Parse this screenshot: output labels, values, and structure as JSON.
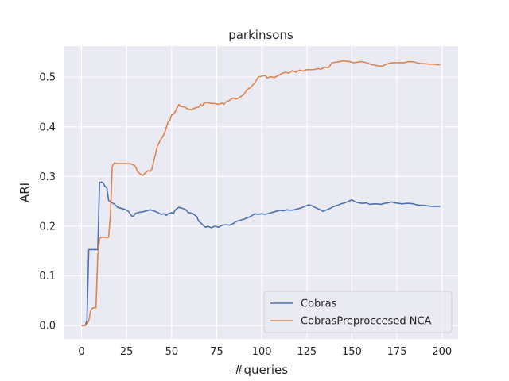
{
  "chart_data": {
    "type": "line",
    "title": "parkinsons",
    "xlabel": "#queries",
    "ylabel": "ARI",
    "xlim": [
      -9.95,
      208.95
    ],
    "ylim": [
      -0.0268,
      0.5625
    ],
    "xticks": [
      0,
      25,
      50,
      75,
      100,
      125,
      150,
      175,
      200
    ],
    "yticks": [
      0.0,
      0.1,
      0.2,
      0.3,
      0.4,
      0.5
    ],
    "ytick_labels": [
      "0.0",
      "0.1",
      "0.2",
      "0.3",
      "0.4",
      "0.5"
    ],
    "grid": true,
    "legend_position": "lower-right",
    "series": [
      {
        "name": "Cobras",
        "color": "#4c72b0",
        "points": [
          [
            0,
            0.0
          ],
          [
            2,
            0.0
          ],
          [
            3,
            0.01
          ],
          [
            4,
            0.153
          ],
          [
            5,
            0.153
          ],
          [
            6,
            0.153
          ],
          [
            8,
            0.153
          ],
          [
            9,
            0.153
          ],
          [
            10,
            0.288
          ],
          [
            11,
            0.289
          ],
          [
            12,
            0.287
          ],
          [
            13,
            0.28
          ],
          [
            14,
            0.278
          ],
          [
            15,
            0.252
          ],
          [
            16,
            0.249
          ],
          [
            17,
            0.247
          ],
          [
            18,
            0.245
          ],
          [
            19,
            0.242
          ],
          [
            20,
            0.238
          ],
          [
            22,
            0.236
          ],
          [
            24,
            0.234
          ],
          [
            26,
            0.23
          ],
          [
            27,
            0.225
          ],
          [
            28,
            0.22
          ],
          [
            29,
            0.221
          ],
          [
            30,
            0.226
          ],
          [
            32,
            0.228
          ],
          [
            34,
            0.229
          ],
          [
            36,
            0.231
          ],
          [
            38,
            0.233
          ],
          [
            40,
            0.231
          ],
          [
            42,
            0.228
          ],
          [
            44,
            0.224
          ],
          [
            46,
            0.225
          ],
          [
            47,
            0.222
          ],
          [
            48,
            0.225
          ],
          [
            50,
            0.227
          ],
          [
            51,
            0.225
          ],
          [
            52,
            0.233
          ],
          [
            54,
            0.238
          ],
          [
            56,
            0.236
          ],
          [
            58,
            0.233
          ],
          [
            59,
            0.228
          ],
          [
            60,
            0.227
          ],
          [
            62,
            0.225
          ],
          [
            64,
            0.219
          ],
          [
            65,
            0.21
          ],
          [
            67,
            0.204
          ],
          [
            68,
            0.2
          ],
          [
            69,
            0.198
          ],
          [
            70,
            0.2
          ],
          [
            72,
            0.197
          ],
          [
            74,
            0.2
          ],
          [
            76,
            0.198
          ],
          [
            78,
            0.202
          ],
          [
            80,
            0.203
          ],
          [
            82,
            0.202
          ],
          [
            84,
            0.205
          ],
          [
            86,
            0.21
          ],
          [
            88,
            0.212
          ],
          [
            90,
            0.214
          ],
          [
            92,
            0.217
          ],
          [
            94,
            0.22
          ],
          [
            96,
            0.225
          ],
          [
            98,
            0.224
          ],
          [
            100,
            0.225
          ],
          [
            102,
            0.224
          ],
          [
            104,
            0.226
          ],
          [
            106,
            0.228
          ],
          [
            108,
            0.23
          ],
          [
            110,
            0.232
          ],
          [
            112,
            0.231
          ],
          [
            114,
            0.233
          ],
          [
            116,
            0.232
          ],
          [
            118,
            0.233
          ],
          [
            120,
            0.235
          ],
          [
            122,
            0.237
          ],
          [
            124,
            0.24
          ],
          [
            126,
            0.243
          ],
          [
            128,
            0.241
          ],
          [
            130,
            0.237
          ],
          [
            132,
            0.234
          ],
          [
            134,
            0.23
          ],
          [
            136,
            0.233
          ],
          [
            138,
            0.236
          ],
          [
            140,
            0.24
          ],
          [
            142,
            0.242
          ],
          [
            144,
            0.245
          ],
          [
            146,
            0.247
          ],
          [
            148,
            0.25
          ],
          [
            150,
            0.253
          ],
          [
            152,
            0.249
          ],
          [
            154,
            0.247
          ],
          [
            156,
            0.246
          ],
          [
            158,
            0.247
          ],
          [
            160,
            0.244
          ],
          [
            162,
            0.245
          ],
          [
            164,
            0.245
          ],
          [
            166,
            0.244
          ],
          [
            168,
            0.246
          ],
          [
            170,
            0.247
          ],
          [
            172,
            0.249
          ],
          [
            174,
            0.247
          ],
          [
            176,
            0.246
          ],
          [
            178,
            0.245
          ],
          [
            180,
            0.246
          ],
          [
            182,
            0.246
          ],
          [
            184,
            0.245
          ],
          [
            186,
            0.243
          ],
          [
            188,
            0.242
          ],
          [
            190,
            0.242
          ],
          [
            192,
            0.241
          ],
          [
            194,
            0.24
          ],
          [
            196,
            0.24
          ],
          [
            198,
            0.24
          ],
          [
            199,
            0.24
          ]
        ]
      },
      {
        "name": "CobrasPreproccesed NCA",
        "color": "#dd8452",
        "points": [
          [
            0,
            0.0
          ],
          [
            2,
            0.0
          ],
          [
            3,
            0.003
          ],
          [
            4,
            0.01
          ],
          [
            5,
            0.03
          ],
          [
            6,
            0.035
          ],
          [
            7,
            0.036
          ],
          [
            8,
            0.036
          ],
          [
            9,
            0.14
          ],
          [
            10,
            0.175
          ],
          [
            11,
            0.178
          ],
          [
            12,
            0.178
          ],
          [
            14,
            0.177
          ],
          [
            15,
            0.178
          ],
          [
            16,
            0.22
          ],
          [
            17,
            0.32
          ],
          [
            18,
            0.327
          ],
          [
            20,
            0.326
          ],
          [
            22,
            0.326
          ],
          [
            24,
            0.326
          ],
          [
            26,
            0.326
          ],
          [
            28,
            0.325
          ],
          [
            30,
            0.32
          ],
          [
            31,
            0.31
          ],
          [
            33,
            0.304
          ],
          [
            34,
            0.302
          ],
          [
            35,
            0.306
          ],
          [
            37,
            0.312
          ],
          [
            38,
            0.31
          ],
          [
            39,
            0.315
          ],
          [
            40,
            0.33
          ],
          [
            41,
            0.345
          ],
          [
            42,
            0.36
          ],
          [
            44,
            0.375
          ],
          [
            45,
            0.38
          ],
          [
            46,
            0.387
          ],
          [
            47,
            0.398
          ],
          [
            48,
            0.41
          ],
          [
            49,
            0.413
          ],
          [
            50,
            0.424
          ],
          [
            51,
            0.425
          ],
          [
            52,
            0.431
          ],
          [
            53,
            0.438
          ],
          [
            54,
            0.445
          ],
          [
            55,
            0.441
          ],
          [
            57,
            0.44
          ],
          [
            59,
            0.436
          ],
          [
            61,
            0.434
          ],
          [
            63,
            0.438
          ],
          [
            65,
            0.44
          ],
          [
            66,
            0.445
          ],
          [
            67,
            0.442
          ],
          [
            68,
            0.448
          ],
          [
            70,
            0.449
          ],
          [
            72,
            0.447
          ],
          [
            74,
            0.447
          ],
          [
            76,
            0.445
          ],
          [
            78,
            0.448
          ],
          [
            79,
            0.445
          ],
          [
            80,
            0.45
          ],
          [
            82,
            0.453
          ],
          [
            84,
            0.458
          ],
          [
            86,
            0.456
          ],
          [
            88,
            0.46
          ],
          [
            90,
            0.465
          ],
          [
            92,
            0.475
          ],
          [
            94,
            0.48
          ],
          [
            96,
            0.488
          ],
          [
            98,
            0.5
          ],
          [
            100,
            0.502
          ],
          [
            102,
            0.503
          ],
          [
            103,
            0.498
          ],
          [
            105,
            0.501
          ],
          [
            107,
            0.499
          ],
          [
            109,
            0.503
          ],
          [
            111,
            0.507
          ],
          [
            113,
            0.51
          ],
          [
            115,
            0.508
          ],
          [
            117,
            0.513
          ],
          [
            119,
            0.51
          ],
          [
            121,
            0.514
          ],
          [
            123,
            0.512
          ],
          [
            125,
            0.515
          ],
          [
            127,
            0.515
          ],
          [
            129,
            0.515
          ],
          [
            131,
            0.517
          ],
          [
            133,
            0.516
          ],
          [
            135,
            0.52
          ],
          [
            137,
            0.519
          ],
          [
            139,
            0.529
          ],
          [
            141,
            0.53
          ],
          [
            143,
            0.531
          ],
          [
            145,
            0.533
          ],
          [
            147,
            0.532
          ],
          [
            149,
            0.531
          ],
          [
            151,
            0.529
          ],
          [
            153,
            0.53
          ],
          [
            155,
            0.531
          ],
          [
            157,
            0.53
          ],
          [
            159,
            0.528
          ],
          [
            161,
            0.525
          ],
          [
            163,
            0.524
          ],
          [
            165,
            0.522
          ],
          [
            167,
            0.522
          ],
          [
            169,
            0.526
          ],
          [
            171,
            0.528
          ],
          [
            173,
            0.529
          ],
          [
            175,
            0.529
          ],
          [
            177,
            0.529
          ],
          [
            179,
            0.529
          ],
          [
            181,
            0.531
          ],
          [
            183,
            0.531
          ],
          [
            185,
            0.53
          ],
          [
            187,
            0.528
          ],
          [
            189,
            0.527
          ],
          [
            191,
            0.527
          ],
          [
            193,
            0.526
          ],
          [
            195,
            0.526
          ],
          [
            197,
            0.525
          ],
          [
            199,
            0.525
          ]
        ]
      }
    ]
  }
}
